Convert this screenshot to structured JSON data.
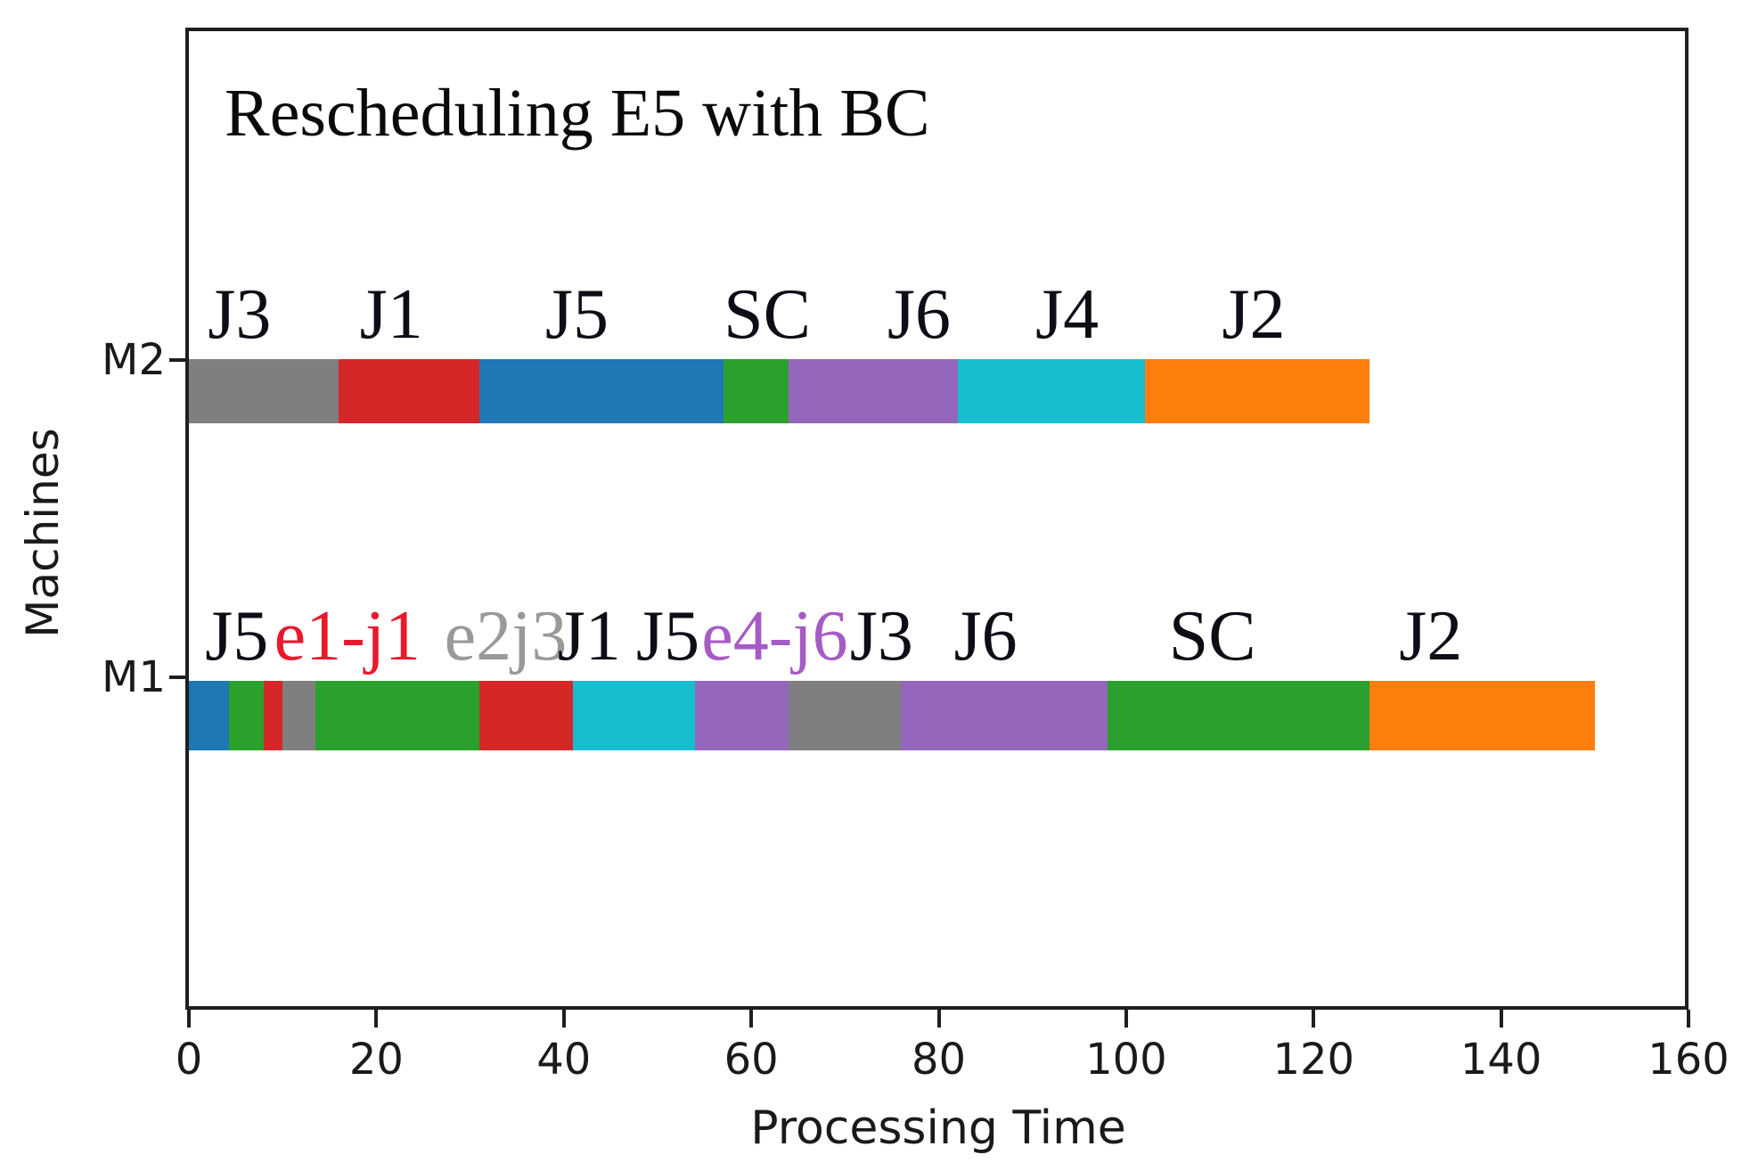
{
  "title": "Rescheduling E5 with BC",
  "chart_data": {
    "type": "gantt",
    "title": "Rescheduling E5 with BC",
    "xlabel": "Processing Time",
    "ylabel": "Machines",
    "xlim": [
      0,
      160
    ],
    "xticks": [
      0,
      20,
      40,
      60,
      80,
      100,
      120,
      140,
      160
    ],
    "grid": false,
    "legend": "none",
    "colors": {
      "blue": "#1f77b4",
      "orange": "#ff7f0e",
      "green": "#2ca02c",
      "red": "#d62728",
      "purple": "#9467bd",
      "gray": "#7f7f7f",
      "cyan": "#17becf",
      "label_default": "#0d0d16",
      "label_red": "#e8192c",
      "label_gray": "#999999",
      "label_purple": "#a65bc4"
    },
    "rows": [
      {
        "machine": "M2",
        "segments": [
          {
            "job": "J3",
            "start": 0,
            "end": 16,
            "color": "#7f7f7f"
          },
          {
            "job": "J1",
            "start": 16,
            "end": 31,
            "color": "#d62728"
          },
          {
            "job": "J5",
            "start": 31,
            "end": 57,
            "color": "#1f77b4"
          },
          {
            "job": "SC",
            "start": 57,
            "end": 64,
            "color": "#2ca02c"
          },
          {
            "job": "J6",
            "start": 64,
            "end": 82,
            "color": "#9467bd"
          },
          {
            "job": "J4",
            "start": 82,
            "end": 102,
            "color": "#17becf"
          },
          {
            "job": "J2",
            "start": 102,
            "end": 126,
            "color": "#ff7f0e"
          }
        ],
        "labels": [
          {
            "text": "J3",
            "x": 5.4,
            "color": "#0d0d16"
          },
          {
            "text": "J1",
            "x": 21.6,
            "color": "#0d0d16"
          },
          {
            "text": "J5",
            "x": 41.4,
            "color": "#0d0d16"
          },
          {
            "text": "SC",
            "x": 61.7,
            "color": "#0d0d16"
          },
          {
            "text": "J6",
            "x": 77.9,
            "color": "#0d0d16"
          },
          {
            "text": "J4",
            "x": 93.7,
            "color": "#0d0d16"
          },
          {
            "text": "J2",
            "x": 113.6,
            "color": "#0d0d16"
          }
        ]
      },
      {
        "machine": "M1",
        "segments": [
          {
            "job": "J5",
            "start": 0,
            "end": 4.3,
            "color": "#1f77b4"
          },
          {
            "job": "e1-j1",
            "start": 4.3,
            "end": 8,
            "color": "#2ca02c"
          },
          {
            "job": "e1-j1",
            "start": 8,
            "end": 10,
            "color": "#d62728"
          },
          {
            "job": "e2j3",
            "start": 10,
            "end": 13.5,
            "color": "#7f7f7f"
          },
          {
            "job": "e2j3",
            "start": 13.5,
            "end": 31,
            "color": "#2ca02c"
          },
          {
            "job": "J1",
            "start": 31,
            "end": 41,
            "color": "#d62728"
          },
          {
            "job": "J5",
            "start": 41,
            "end": 54,
            "color": "#17becf"
          },
          {
            "job": "e4-j6",
            "start": 54,
            "end": 64,
            "color": "#9467bd"
          },
          {
            "job": "J3",
            "start": 64,
            "end": 76,
            "color": "#7f7f7f"
          },
          {
            "job": "J6",
            "start": 76,
            "end": 98,
            "color": "#9467bd"
          },
          {
            "job": "SC",
            "start": 98,
            "end": 126,
            "color": "#2ca02c"
          },
          {
            "job": "J2",
            "start": 126,
            "end": 150,
            "color": "#ff7f0e"
          }
        ],
        "labels": [
          {
            "text": "J5",
            "x": 5.1,
            "color": "#0d0d16"
          },
          {
            "text": "e1-j1",
            "x": 16.9,
            "color": "#e8192c"
          },
          {
            "text": "e2j3",
            "x": 33.8,
            "color": "#999999"
          },
          {
            "text": "J1",
            "x": 42.7,
            "color": "#0d0d16"
          },
          {
            "text": "J5",
            "x": 51.1,
            "color": "#0d0d16"
          },
          {
            "text": "e4-j6",
            "x": 62.5,
            "color": "#a65bc4"
          },
          {
            "text": "J3",
            "x": 73.9,
            "color": "#0d0d16"
          },
          {
            "text": "J6",
            "x": 85.0,
            "color": "#0d0d16"
          },
          {
            "text": "SC",
            "x": 109.2,
            "color": "#0d0d16"
          },
          {
            "text": "J2",
            "x": 132.5,
            "color": "#0d0d16"
          }
        ]
      }
    ]
  }
}
